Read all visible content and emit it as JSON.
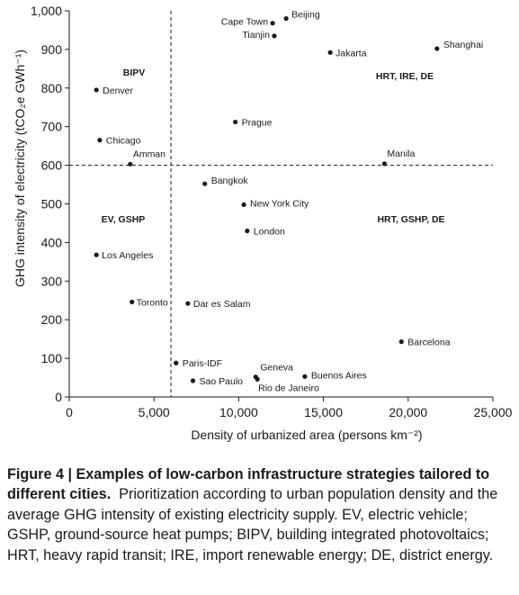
{
  "chart_data": {
    "type": "scatter",
    "xlabel": "Density of urbanized area (persons km⁻²)",
    "ylabel": "GHG intensity of electricity (tCO₂e GWh⁻¹)",
    "xlim": [
      0,
      25000
    ],
    "ylim": [
      0,
      1000
    ],
    "x_ticks": [
      0,
      5000,
      10000,
      15000,
      20000,
      25000
    ],
    "x_tick_labels": [
      "0",
      "5,000",
      "10,000",
      "15,000",
      "20,000",
      "25,000"
    ],
    "y_ticks": [
      0,
      100,
      200,
      300,
      400,
      500,
      600,
      700,
      800,
      900,
      1000
    ],
    "y_tick_labels": [
      "0",
      "100",
      "200",
      "300",
      "400",
      "500",
      "600",
      "700",
      "800",
      "900",
      "1,000"
    ],
    "thresholds": {
      "x": 6000,
      "y": 600
    },
    "points": [
      {
        "label": "Beijing",
        "x": 12800,
        "y": 980
      },
      {
        "label": "Cape Town",
        "x": 12000,
        "y": 968
      },
      {
        "label": "Tianjin",
        "x": 12100,
        "y": 935
      },
      {
        "label": "Jakarta",
        "x": 15400,
        "y": 892
      },
      {
        "label": "Shanghai",
        "x": 21700,
        "y": 902
      },
      {
        "label": "Denver",
        "x": 1600,
        "y": 795
      },
      {
        "label": "Prague",
        "x": 9800,
        "y": 712
      },
      {
        "label": "Chicago",
        "x": 1800,
        "y": 665
      },
      {
        "label": "Amman",
        "x": 3600,
        "y": 603
      },
      {
        "label": "Manila",
        "x": 18600,
        "y": 604
      },
      {
        "label": "Bangkok",
        "x": 8000,
        "y": 552
      },
      {
        "label": "New York City",
        "x": 10300,
        "y": 498
      },
      {
        "label": "London",
        "x": 10500,
        "y": 430
      },
      {
        "label": "Los Angeles",
        "x": 1600,
        "y": 368
      },
      {
        "label": "Toronto",
        "x": 3700,
        "y": 246
      },
      {
        "label": "Dar es Salam",
        "x": 7000,
        "y": 242
      },
      {
        "label": "Barcelona",
        "x": 19600,
        "y": 143
      },
      {
        "label": "Paris-IDF",
        "x": 6300,
        "y": 88
      },
      {
        "label": "Geneva",
        "x": 11000,
        "y": 52
      },
      {
        "label": "Buenos Aires",
        "x": 13900,
        "y": 53
      },
      {
        "label": "Sao Paulo",
        "x": 7300,
        "y": 42
      },
      {
        "label": "Rio de Janeiro",
        "x": 11100,
        "y": 46
      }
    ],
    "regions": [
      "BIPV",
      "HRT, IRE, DE",
      "EV, GSHP",
      "HRT, GSHP, DE"
    ]
  },
  "caption": {
    "title": "Figure 4 | Examples of low-carbon infrastructure strategies tailored to different cities.",
    "body": "Prioritization according to urban population density and the average GHG intensity of existing electricity supply. EV, electric vehicle; GSHP, ground-source heat pumps; BIPV, building integrated photovoltaics; HRT, heavy rapid transit; IRE, import renewable energy; DE, district energy."
  }
}
